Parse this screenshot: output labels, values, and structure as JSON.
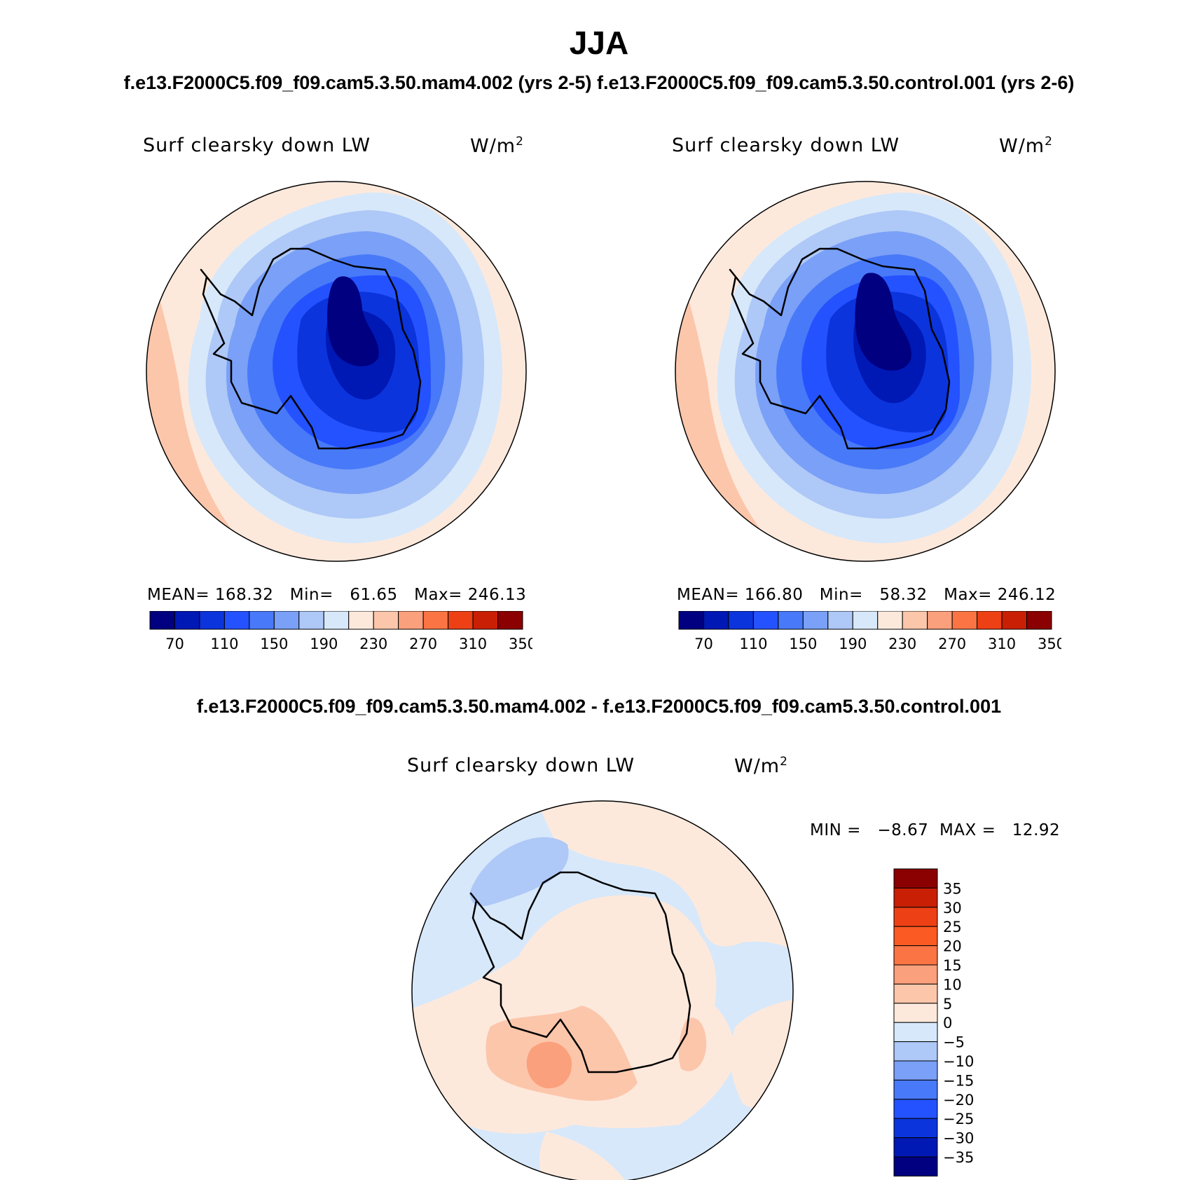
{
  "header": {
    "title": "JJA",
    "subtitle_left": "f.e13.F2000C5.f09_f09.cam5.3.50.mam4.002 (yrs 2-5)",
    "subtitle_right": "f.e13.F2000C5.f09_f09.cam5.3.50.control.001 (yrs 2-6)"
  },
  "panels": [
    {
      "title": "Surf clearsky down LW",
      "unit": "W/m",
      "unit_exp": "2",
      "stats": "MEAN= 168.32   Min=   61.65   Max= 246.13",
      "colorbar_labels": [
        "70",
        "110",
        "150",
        "190",
        "230",
        "270",
        "310",
        "350"
      ]
    },
    {
      "title": "Surf clearsky down LW",
      "unit": "W/m",
      "unit_exp": "2",
      "stats": "MEAN= 166.80   Min=   58.32   Max= 246.12",
      "colorbar_labels": [
        "70",
        "110",
        "150",
        "190",
        "230",
        "270",
        "310",
        "350"
      ]
    }
  ],
  "diff": {
    "title": "f.e13.F2000C5.f09_f09.cam5.3.50.mam4.002 - f.e13.F2000C5.f09_f09.cam5.3.50.control.001",
    "panel_title": "Surf clearsky down LW",
    "unit": "W/m",
    "unit_exp": "2",
    "stats": "MIN =   −8.67  MAX =   12.92",
    "colorbar_labels": [
      "35",
      "30",
      "25",
      "20",
      "15",
      "10",
      "5",
      "0",
      "−5",
      "−10",
      "−15",
      "−20",
      "−25",
      "−30",
      "−35"
    ]
  },
  "colors": {
    "abs_scale": [
      "#000080",
      "#0018b4",
      "#0b34dc",
      "#2452ff",
      "#4879f8",
      "#7aa0f7",
      "#aec8f7",
      "#d7e8fa",
      "#fde9dc",
      "#fcc6ab",
      "#fba07c",
      "#fb7443",
      "#ee4015",
      "#c91f04",
      "#8b0000"
    ],
    "diff_scale": [
      "#8b0000",
      "#c91f04",
      "#ee4015",
      "#fb5a22",
      "#fb7443",
      "#fba07c",
      "#fcc6ab",
      "#fde9dc",
      "#d7e8fa",
      "#aec8f7",
      "#7aa0f7",
      "#4879f8",
      "#2452ff",
      "#0b34dc",
      "#0018b4",
      "#000080"
    ]
  }
}
